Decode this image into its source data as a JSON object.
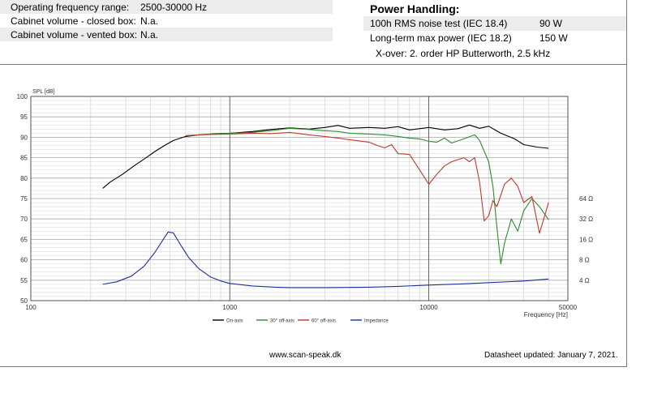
{
  "specs": [
    {
      "label": "Operating frequency range:",
      "value": "2500-30000 Hz"
    },
    {
      "label": "Cabinet volume - closed box:",
      "value": "N.a."
    },
    {
      "label": "Cabinet volume - vented box:",
      "value": "N.a."
    }
  ],
  "power": {
    "title": "Power Handling:",
    "rows": [
      {
        "label": "100h RMS noise test (IEC 18.4)",
        "value": "90 W"
      },
      {
        "label": "Long-term max power (IEC 18.2)",
        "value": "150 W"
      }
    ],
    "xover": "X-over: 2. order HP Butterworth, 2.5 kHz"
  },
  "footer": {
    "url": "www.scan-speak.dk",
    "updated": "Datasheet updated: January 7, 2021."
  },
  "chart_data": {
    "type": "line",
    "xscale": "log",
    "xlim": [
      100,
      50000
    ],
    "ylim": [
      50,
      100
    ],
    "ylabel": "SPL [dB]",
    "xlabel": "Frequency [Hz]",
    "grid": true,
    "legend_position": "bottom",
    "x_ticks": [
      {
        "v": 100,
        "label": "100"
      },
      {
        "v": 1000,
        "label": "1000"
      },
      {
        "v": 10000,
        "label": "10000"
      },
      {
        "v": 50000,
        "label": "50000"
      }
    ],
    "y_ticks": [
      50,
      55,
      60,
      65,
      70,
      75,
      80,
      85,
      90,
      95,
      100
    ],
    "right_axis": {
      "label_unit": "Ω",
      "ticks": [
        {
          "spl": 55,
          "label": "4 Ω"
        },
        {
          "spl": 60,
          "label": "8 Ω"
        },
        {
          "spl": 65,
          "label": "16 Ω"
        },
        {
          "spl": 70,
          "label": "32 Ω"
        },
        {
          "spl": 75,
          "label": "64 Ω"
        }
      ]
    },
    "series": [
      {
        "name": "On-axis",
        "color": "#000000",
        "points": [
          [
            230,
            77.5
          ],
          [
            250,
            79
          ],
          [
            290,
            81
          ],
          [
            330,
            83
          ],
          [
            380,
            85
          ],
          [
            420,
            86.5
          ],
          [
            470,
            88
          ],
          [
            520,
            89.2
          ],
          [
            600,
            90.2
          ],
          [
            700,
            90.6
          ],
          [
            850,
            90.9
          ],
          [
            1000,
            91.0
          ],
          [
            1300,
            91.4
          ],
          [
            1600,
            91.9
          ],
          [
            2000,
            92.3
          ],
          [
            2500,
            92.0
          ],
          [
            3000,
            92.4
          ],
          [
            3500,
            92.9
          ],
          [
            4000,
            92.2
          ],
          [
            5000,
            92.4
          ],
          [
            6000,
            92.2
          ],
          [
            7000,
            92.6
          ],
          [
            8000,
            91.8
          ],
          [
            10000,
            92.4
          ],
          [
            12000,
            91.8
          ],
          [
            14000,
            92.1
          ],
          [
            16000,
            93.0
          ],
          [
            18000,
            92.2
          ],
          [
            20000,
            92.7
          ],
          [
            23000,
            91.0
          ],
          [
            27000,
            89.6
          ],
          [
            30000,
            88.2
          ],
          [
            35000,
            87.6
          ],
          [
            40000,
            87.3
          ]
        ]
      },
      {
        "name": "30° off-axis",
        "color": "#2e8b2e",
        "points": [
          [
            600,
            90.4
          ],
          [
            800,
            90.8
          ],
          [
            1000,
            91.0
          ],
          [
            1300,
            91.2
          ],
          [
            1600,
            91.6
          ],
          [
            2000,
            92.2
          ],
          [
            2500,
            91.9
          ],
          [
            3000,
            91.6
          ],
          [
            3500,
            91.4
          ],
          [
            4000,
            91.0
          ],
          [
            5000,
            90.8
          ],
          [
            6000,
            90.6
          ],
          [
            7000,
            90.2
          ],
          [
            8000,
            89.8
          ],
          [
            9000,
            89.6
          ],
          [
            10000,
            89.0
          ],
          [
            11000,
            88.8
          ],
          [
            12000,
            89.8
          ],
          [
            13000,
            88.6
          ],
          [
            15000,
            89.6
          ],
          [
            17000,
            90.6
          ],
          [
            18000,
            89.2
          ],
          [
            20000,
            84.0
          ],
          [
            21000,
            78.0
          ],
          [
            22000,
            68.0
          ],
          [
            23000,
            59.0
          ],
          [
            24000,
            64.0
          ],
          [
            26000,
            70.0
          ],
          [
            28000,
            67.0
          ],
          [
            30000,
            72.0
          ],
          [
            33000,
            75.0
          ],
          [
            36000,
            73.0
          ],
          [
            40000,
            69.8
          ]
        ]
      },
      {
        "name": "60° off-axis",
        "color": "#c0392b",
        "points": [
          [
            600,
            90.4
          ],
          [
            800,
            90.7
          ],
          [
            1000,
            90.8
          ],
          [
            1300,
            91.0
          ],
          [
            1600,
            90.9
          ],
          [
            2000,
            91.2
          ],
          [
            2500,
            90.6
          ],
          [
            3000,
            90.2
          ],
          [
            3500,
            89.8
          ],
          [
            4000,
            89.4
          ],
          [
            5000,
            88.8
          ],
          [
            5500,
            88.0
          ],
          [
            6000,
            87.4
          ],
          [
            6500,
            88.2
          ],
          [
            7000,
            86.0
          ],
          [
            8000,
            85.8
          ],
          [
            9000,
            82.0
          ],
          [
            10000,
            78.5
          ],
          [
            11000,
            81.0
          ],
          [
            12000,
            83.0
          ],
          [
            13000,
            84.0
          ],
          [
            15000,
            85.0
          ],
          [
            16000,
            84.0
          ],
          [
            17000,
            85.0
          ],
          [
            18000,
            79.0
          ],
          [
            19000,
            69.5
          ],
          [
            20000,
            70.8
          ],
          [
            21000,
            74.5
          ],
          [
            22000,
            73.0
          ],
          [
            24000,
            78.5
          ],
          [
            26000,
            80.0
          ],
          [
            28000,
            78.0
          ],
          [
            30000,
            74.0
          ],
          [
            33000,
            75.5
          ],
          [
            36000,
            66.5
          ],
          [
            40000,
            74.0
          ]
        ]
      },
      {
        "name": "Impedance",
        "color": "#1f2f99",
        "points": [
          [
            230,
            54.0
          ],
          [
            270,
            54.6
          ],
          [
            320,
            56.0
          ],
          [
            370,
            58.4
          ],
          [
            420,
            61.8
          ],
          [
            460,
            64.8
          ],
          [
            490,
            66.8
          ],
          [
            520,
            66.6
          ],
          [
            560,
            64.0
          ],
          [
            620,
            60.6
          ],
          [
            700,
            57.8
          ],
          [
            800,
            55.8
          ],
          [
            900,
            54.8
          ],
          [
            1000,
            54.2
          ],
          [
            1300,
            53.6
          ],
          [
            1700,
            53.3
          ],
          [
            2000,
            53.2
          ],
          [
            3000,
            53.2
          ],
          [
            5000,
            53.3
          ],
          [
            7000,
            53.5
          ],
          [
            10000,
            53.8
          ],
          [
            15000,
            54.1
          ],
          [
            20000,
            54.4
          ],
          [
            30000,
            54.8
          ],
          [
            40000,
            55.3
          ]
        ]
      }
    ]
  }
}
